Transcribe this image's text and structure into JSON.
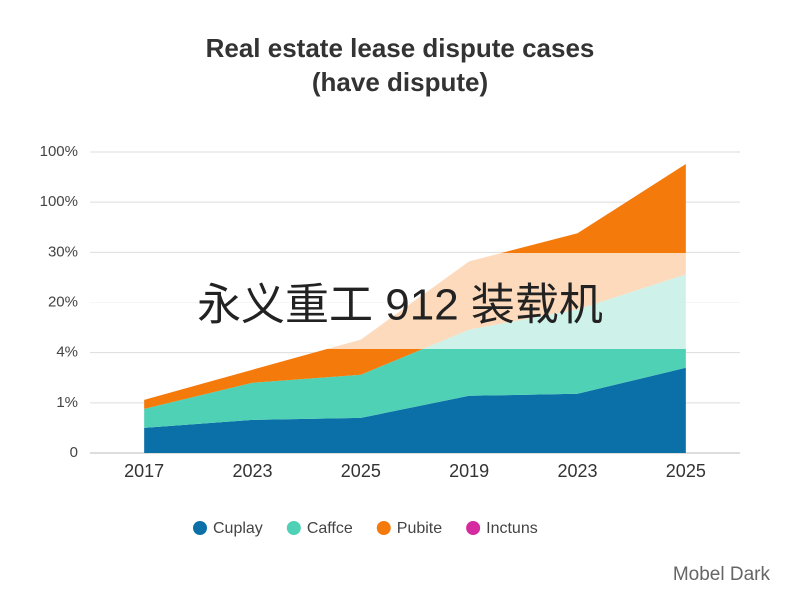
{
  "chart_data": {
    "type": "stacked_area",
    "title": "Real estate lease dispute cases",
    "subtitle": "(have dispute)",
    "categories": [
      "2017",
      "2023",
      "2025",
      "2019",
      "2023",
      "2025"
    ],
    "series": [
      {
        "name": "Cuplay",
        "color": "#0b6fa8",
        "values": [
          0.5,
          0.66,
          0.7,
          1.14,
          1.18,
          1.7
        ]
      },
      {
        "name": "Caffce",
        "color": "#4fd1b5",
        "values": [
          0.38,
          0.74,
          0.86,
          1.32,
          1.68,
          1.86
        ]
      },
      {
        "name": "Pubite",
        "color": "#f57a0c",
        "values": [
          0.18,
          0.26,
          0.7,
          1.36,
          1.52,
          2.2
        ]
      },
      {
        "name": "Inctuns",
        "color": "#d62aa0",
        "values": [
          null,
          null,
          null,
          null,
          null,
          null
        ]
      }
    ],
    "ylim": [
      0,
      6
    ],
    "yticks": [
      0,
      {
        "value": 1,
        "label": "1%"
      },
      {
        "value": 2,
        "label": "4%"
      },
      {
        "value": 3,
        "label": "20%"
      },
      {
        "value": 4,
        "label": "30%"
      },
      {
        "value": 5,
        "label": "100%"
      },
      {
        "value": 6,
        "label": "100%"
      }
    ],
    "grid": true,
    "overlay_text": "永义重工 912 装载机",
    "watermark": "Mobel Dark"
  }
}
